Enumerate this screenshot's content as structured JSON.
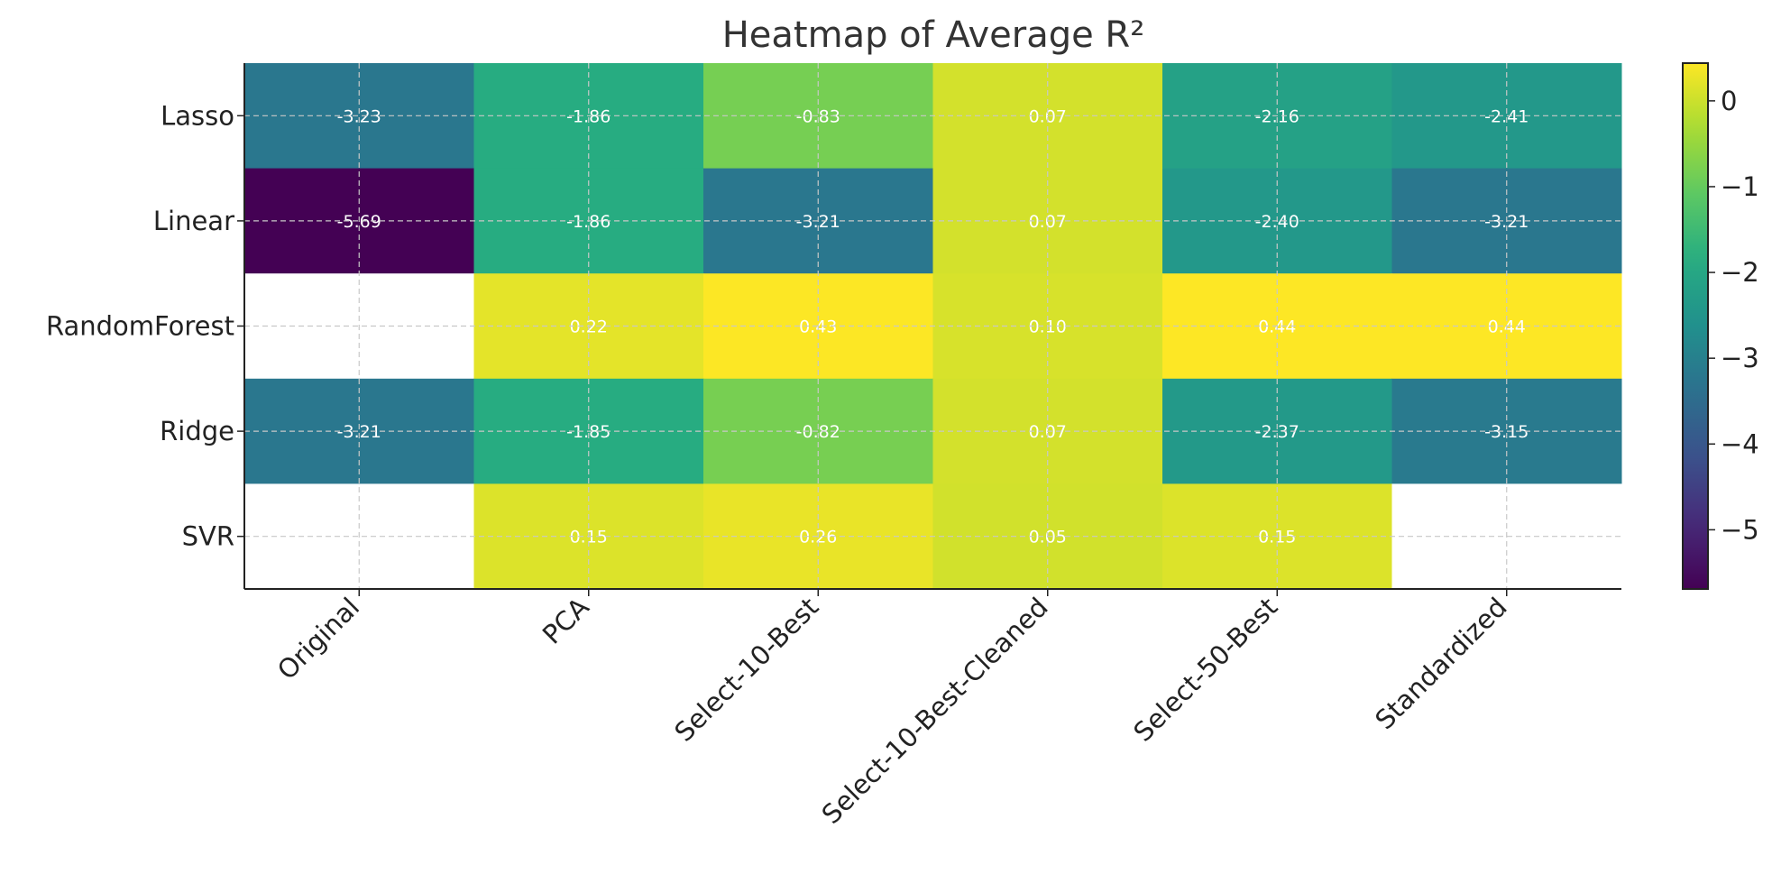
{
  "chart_data": {
    "type": "heatmap",
    "title": "Heatmap of Average R²",
    "xlabel": "",
    "ylabel": "",
    "columns": [
      "Original",
      "PCA",
      "Select-10-Best",
      "Select-10-Best-Cleaned",
      "Select-50-Best",
      "Standardized"
    ],
    "rows": [
      "Lasso",
      "Linear",
      "RandomForest",
      "Ridge",
      "SVR"
    ],
    "values": [
      [
        -3.23,
        -1.86,
        -0.83,
        0.07,
        -2.16,
        -2.41
      ],
      [
        -5.69,
        -1.86,
        -3.21,
        0.07,
        -2.4,
        -3.21
      ],
      [
        null,
        0.22,
        0.43,
        0.1,
        0.44,
        0.44
      ],
      [
        -3.21,
        -1.85,
        -0.82,
        0.07,
        -2.37,
        -3.15
      ],
      [
        null,
        0.15,
        0.26,
        0.05,
        0.15,
        null
      ]
    ],
    "labels": [
      [
        "-3.23",
        "-1.86",
        "-0.83",
        "0.07",
        "-2.16",
        "-2.41"
      ],
      [
        "-5.69",
        "-1.86",
        "-3.21",
        "0.07",
        "-2.40",
        "-3.21"
      ],
      [
        "",
        "0.22",
        "0.43",
        "0.10",
        "0.44",
        "0.44"
      ],
      [
        "-3.21",
        "-1.85",
        "-0.82",
        "0.07",
        "-2.37",
        "-3.15"
      ],
      [
        "",
        "0.15",
        "0.26",
        "0.05",
        "0.15",
        ""
      ]
    ],
    "colormap": "viridis",
    "vmin": -5.69,
    "vmax": 0.44,
    "colorbar": {
      "ticks": [
        0,
        -1,
        -2,
        -3,
        -4,
        -5
      ],
      "tick_labels": [
        "0",
        "−1",
        "−2",
        "−3",
        "−4",
        "−5"
      ]
    },
    "grid": true,
    "missing_color": "#ffffff"
  }
}
